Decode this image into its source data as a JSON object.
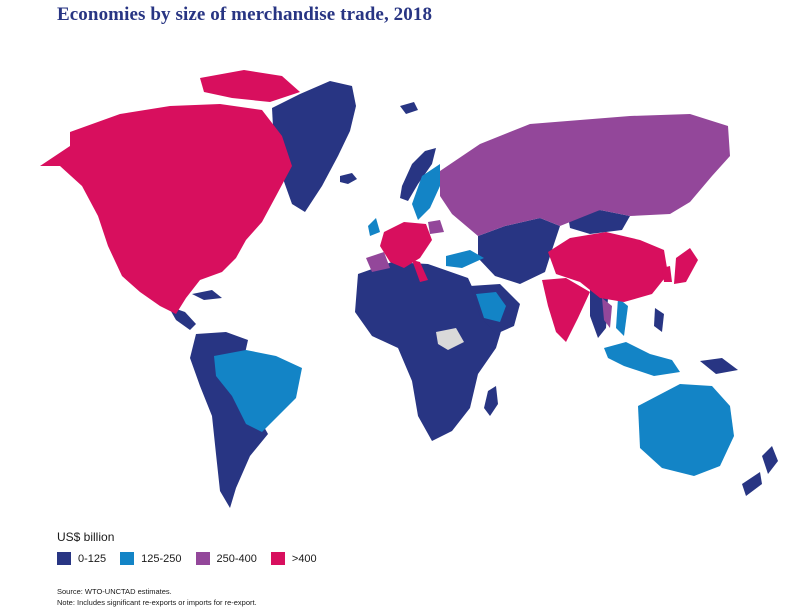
{
  "title": "Economies by size of merchandise trade, 2018",
  "legend": {
    "title": "US$ billion",
    "items": [
      {
        "label": "0-125",
        "color": "#283583"
      },
      {
        "label": "125-250",
        "color": "#1384c6"
      },
      {
        "label": "250-400",
        "color": "#93479a"
      },
      {
        "label": ">400",
        "color": "#d80f5e"
      }
    ]
  },
  "no_data_color": "#d9d9d9",
  "source": "Source: WTO-UNCTAD estimates.",
  "note": "Note: Includes significant re-exports or imports for re-export."
}
